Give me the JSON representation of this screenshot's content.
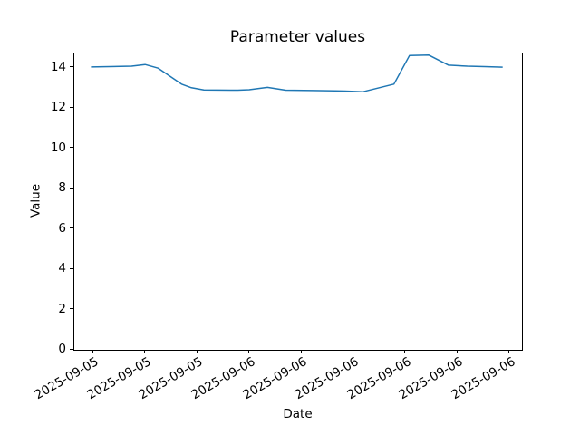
{
  "figure": {
    "title": "Parameter values",
    "xlabel": "Date",
    "ylabel": "Value"
  },
  "chart_data": {
    "type": "line",
    "title": "Parameter values",
    "xlabel": "Date",
    "ylabel": "Value",
    "background_color": "#ffffff",
    "axis_color": "#000000",
    "line_color": "#1f77b4",
    "line_width": 1.5,
    "grid": false,
    "legend": "none",
    "markers": "none",
    "y_ticks": [
      0,
      2,
      4,
      6,
      8,
      10,
      12,
      14
    ],
    "ylim": [
      0,
      14.7
    ],
    "x_tick_labels": [
      "2025-09-05",
      "2025-09-05",
      "2025-09-05",
      "2025-09-06",
      "2025-09-06",
      "2025-09-06",
      "2025-09-06",
      "2025-09-06",
      "2025-09-06"
    ],
    "x_tick_rotation_deg": 30,
    "x_tick_positions_units": [
      0,
      1,
      2,
      3,
      4,
      5,
      6,
      7,
      8
    ],
    "xlim_units": [
      -0.37,
      8.23
    ],
    "series": [
      {
        "name": "Parameter values",
        "x_units": [
          -0.05,
          0.73,
          0.99,
          1.24,
          1.69,
          1.88,
          2.12,
          2.77,
          2.99,
          3.34,
          3.69,
          4.21,
          4.64,
          4.9,
          5.17,
          5.77,
          6.07,
          6.44,
          6.82,
          7.18,
          7.51,
          7.86
        ],
        "values": [
          14.03,
          14.07,
          14.15,
          13.97,
          13.18,
          13.0,
          12.89,
          12.88,
          12.9,
          13.02,
          12.88,
          12.86,
          12.85,
          12.83,
          12.8,
          13.18,
          14.6,
          14.62,
          14.12,
          14.07,
          14.05,
          14.02
        ]
      }
    ]
  }
}
